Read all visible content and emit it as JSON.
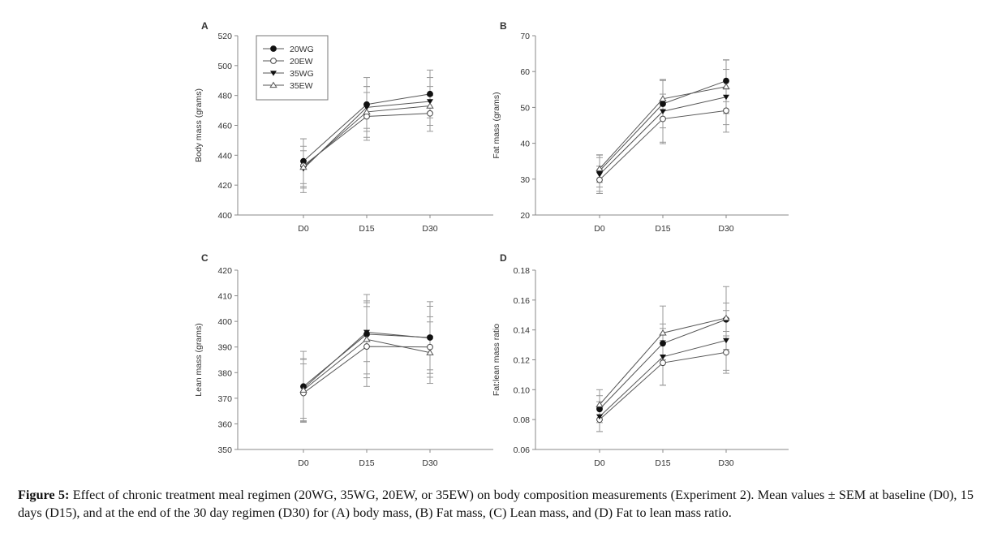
{
  "figure": {
    "caption_label": "Figure 5:",
    "caption_text": " Effect of chronic treatment meal regimen (20WG, 35WG, 20EW, or 35EW) on body composition measurements (Experiment 2). Mean values ± SEM at baseline (D0), 15 days (D15), and at the end of the 30 day regimen (D30) for (A) body mass, (B) Fat mass, (C) Lean mass, and (D) Fat to lean mass ratio."
  },
  "legend": {
    "placement": "top-left of panel A",
    "entries": [
      {
        "name": "20WG",
        "marker": "filled-circle"
      },
      {
        "name": "20EW",
        "marker": "open-circle"
      },
      {
        "name": "35WG",
        "marker": "filled-triangle-down"
      },
      {
        "name": "35EW",
        "marker": "open-triangle-up"
      }
    ]
  },
  "chart_data": [
    {
      "panel": "A",
      "type": "line",
      "title": "",
      "xlabel": "",
      "ylabel": "Body mass (grams)",
      "categories": [
        "D0",
        "D15",
        "D30"
      ],
      "ylim": [
        400,
        520
      ],
      "yticks": [
        400,
        420,
        440,
        460,
        480,
        500,
        520
      ],
      "ytick_labels": [
        "400",
        "420",
        "440",
        "460",
        "480",
        "500",
        "520"
      ],
      "grid": false,
      "series": [
        {
          "name": "20WG",
          "values": [
            436,
            474,
            481
          ],
          "errors": [
            15,
            18,
            16
          ]
        },
        {
          "name": "20EW",
          "values": [
            433,
            466,
            468
          ],
          "errors": [
            18,
            16,
            12
          ]
        },
        {
          "name": "35WG",
          "values": [
            431,
            472,
            476
          ],
          "errors": [
            12,
            14,
            16
          ]
        },
        {
          "name": "35EW",
          "values": [
            432,
            469,
            473
          ],
          "errors": [
            14,
            17,
            13
          ]
        }
      ]
    },
    {
      "panel": "B",
      "type": "line",
      "title": "",
      "xlabel": "",
      "ylabel": "Fat mass (grams)",
      "categories": [
        "D0",
        "D15",
        "D30"
      ],
      "ylim": [
        20,
        70
      ],
      "yticks": [
        20,
        30,
        40,
        50,
        60,
        70
      ],
      "ytick_labels": [
        "20",
        "30",
        "40",
        "50",
        "60",
        "70"
      ],
      "grid": false,
      "series": [
        {
          "name": "20WG",
          "values": [
            32.3,
            51.0,
            57.4
          ],
          "errors": [
            4.5,
            6.7,
            5.8
          ]
        },
        {
          "name": "20EW",
          "values": [
            29.8,
            46.8,
            49.1
          ],
          "errors": [
            3.8,
            6.9,
            6.0
          ]
        },
        {
          "name": "35WG",
          "values": [
            31.3,
            48.9,
            52.9
          ],
          "errors": [
            4.7,
            8.6,
            7.7
          ]
        },
        {
          "name": "35EW",
          "values": [
            32.9,
            52.4,
            55.8
          ],
          "errors": [
            3.8,
            5.4,
            7.5
          ]
        }
      ]
    },
    {
      "panel": "C",
      "type": "line",
      "title": "",
      "xlabel": "",
      "ylabel": "Lean mass (grams)",
      "categories": [
        "D0",
        "D15",
        "D30"
      ],
      "ylim": [
        350,
        420
      ],
      "yticks": [
        350,
        360,
        370,
        380,
        390,
        400,
        410,
        420
      ],
      "ytick_labels": [
        "350",
        "360",
        "370",
        "380",
        "390",
        "400",
        "410",
        "420"
      ],
      "grid": false,
      "series": [
        {
          "name": "20WG",
          "values": [
            374.6,
            395.0,
            393.7
          ],
          "errors": [
            13.7,
            15.5,
            14.0
          ]
        },
        {
          "name": "20EW",
          "values": [
            372.0,
            390.2,
            390.0
          ],
          "errors": [
            11.4,
            15.6,
            11.8
          ]
        },
        {
          "name": "35WG",
          "values": [
            373.8,
            395.8,
            393.5
          ],
          "errors": [
            11.6,
            11.5,
            12.4
          ]
        },
        {
          "name": "35EW",
          "values": [
            373.2,
            393.0,
            387.8
          ],
          "errors": [
            12.0,
            15.0,
            12.0
          ]
        }
      ]
    },
    {
      "panel": "D",
      "type": "line",
      "title": "",
      "xlabel": "",
      "ylabel": "Fat:lean mass ratio",
      "categories": [
        "D0",
        "D15",
        "D30"
      ],
      "ylim": [
        0.06,
        0.18
      ],
      "yticks": [
        0.06,
        0.08,
        0.1,
        0.12,
        0.14,
        0.16,
        0.18
      ],
      "ytick_labels": [
        "0.06",
        "0.08",
        "0.10",
        "0.12",
        "0.14",
        "0.16",
        "0.18"
      ],
      "grid": false,
      "series": [
        {
          "name": "20WG",
          "values": [
            0.087,
            0.131,
            0.147
          ],
          "errors": [
            0.009,
            0.013,
            0.011
          ]
        },
        {
          "name": "20EW",
          "values": [
            0.08,
            0.118,
            0.125
          ],
          "errors": [
            0.008,
            0.015,
            0.014
          ]
        },
        {
          "name": "35WG",
          "values": [
            0.082,
            0.122,
            0.133
          ],
          "errors": [
            0.01,
            0.019,
            0.02
          ]
        },
        {
          "name": "35EW",
          "values": [
            0.09,
            0.138,
            0.148
          ],
          "errors": [
            0.01,
            0.018,
            0.021
          ]
        }
      ]
    }
  ]
}
